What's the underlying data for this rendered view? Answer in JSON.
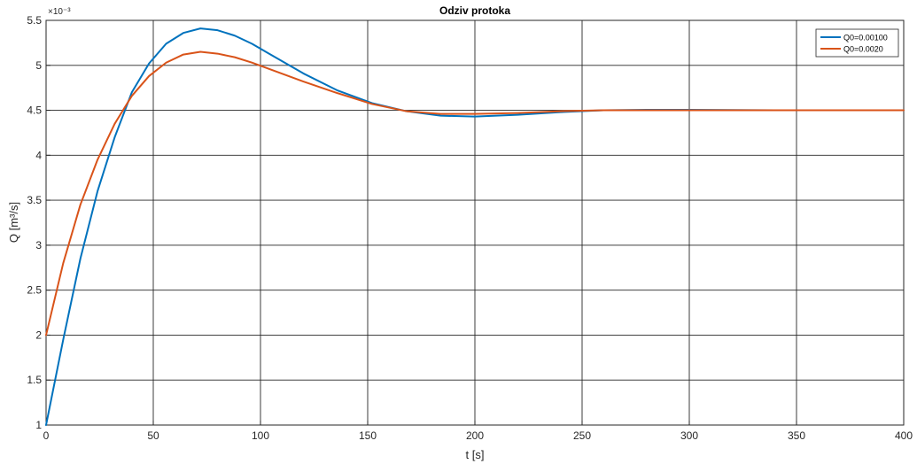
{
  "chart_data": {
    "type": "line",
    "title": "Odziv protoka",
    "xlabel": "t [s]",
    "ylabel": "Q [m³/s]",
    "y_exponent_label": "×10⁻³",
    "xlim": [
      0,
      400
    ],
    "ylim": [
      1,
      5.5
    ],
    "grid": true,
    "legend_position": "top-right",
    "x_ticks": [
      0,
      50,
      100,
      150,
      200,
      250,
      300,
      350,
      400
    ],
    "x_tick_labels": [
      "0",
      "50",
      "100",
      "150",
      "200",
      "250",
      "300",
      "350",
      "400"
    ],
    "y_ticks": [
      1,
      1.5,
      2,
      2.5,
      3,
      3.5,
      4,
      4.5,
      5,
      5.5
    ],
    "y_tick_labels": [
      "1",
      "1.5",
      "2",
      "2.5",
      "3",
      "3.5",
      "4",
      "4.5",
      "5",
      "5.5"
    ],
    "series": [
      {
        "name": "Q0=0.00100",
        "color": "#0072bd",
        "x": [
          0,
          8,
          16,
          24,
          32,
          40,
          48,
          56,
          64,
          72,
          80,
          88,
          96,
          104,
          112,
          120,
          136,
          152,
          168,
          184,
          200,
          220,
          240,
          260,
          280,
          300,
          320,
          340,
          360,
          380,
          400
        ],
        "y": [
          1.0,
          1.95,
          2.85,
          3.6,
          4.2,
          4.7,
          5.02,
          5.24,
          5.36,
          5.41,
          5.39,
          5.33,
          5.24,
          5.13,
          5.02,
          4.91,
          4.72,
          4.58,
          4.49,
          4.44,
          4.43,
          4.45,
          4.48,
          4.5,
          4.505,
          4.505,
          4.503,
          4.501,
          4.5,
          4.5,
          4.5
        ]
      },
      {
        "name": "Q0=0.0020",
        "color": "#d95319",
        "x": [
          0,
          8,
          16,
          24,
          32,
          40,
          48,
          56,
          64,
          72,
          80,
          88,
          96,
          104,
          112,
          120,
          136,
          152,
          168,
          184,
          200,
          220,
          240,
          260,
          280,
          300,
          320,
          340,
          360,
          380,
          400
        ],
        "y": [
          2.0,
          2.8,
          3.45,
          3.95,
          4.35,
          4.66,
          4.88,
          5.03,
          5.12,
          5.15,
          5.13,
          5.09,
          5.03,
          4.96,
          4.89,
          4.82,
          4.69,
          4.57,
          4.49,
          4.46,
          4.46,
          4.47,
          4.49,
          4.5,
          4.5,
          4.5,
          4.5,
          4.5,
          4.5,
          4.5,
          4.5
        ]
      }
    ]
  }
}
